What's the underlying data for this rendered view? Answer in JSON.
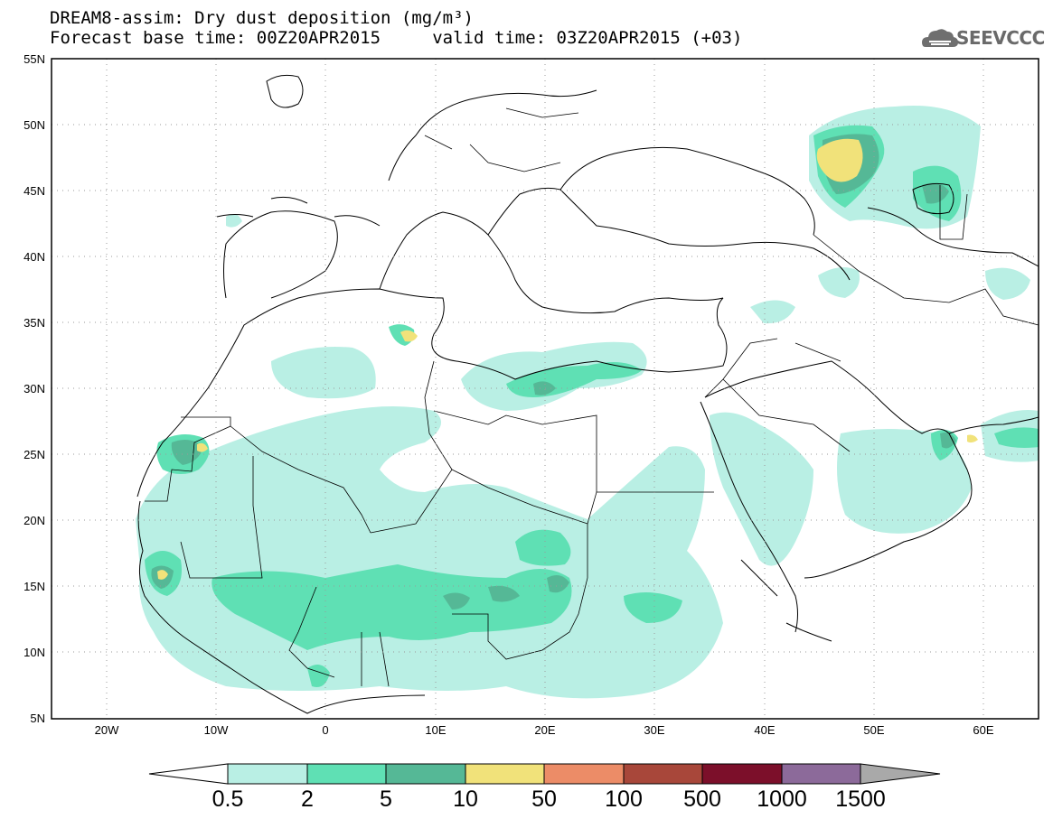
{
  "header": {
    "title_line1": "DREAM8-assim: Dry dust deposition (mg/m³)",
    "title_line2": "Forecast base time: 00Z20APR2015     valid time: 03Z20APR2015 (+03)",
    "logo_text": "SEEVCCC"
  },
  "map": {
    "projection": "lat-lon",
    "lon_range": [
      -25,
      65
    ],
    "lat_range": [
      5,
      55
    ],
    "lat_labels": [
      "55N",
      "50N",
      "45N",
      "40N",
      "35N",
      "30N",
      "25N",
      "20N",
      "15N",
      "10N",
      "5N"
    ],
    "lon_labels": [
      "20W",
      "10W",
      "0",
      "10E",
      "20E",
      "30E",
      "40E",
      "50E",
      "60E"
    ],
    "grid": "dotted",
    "coastline_color": "#000000"
  },
  "colorbar": {
    "labels": [
      "0.5",
      "2",
      "5",
      "10",
      "50",
      "100",
      "500",
      "1000",
      "1500"
    ],
    "colors": [
      "#b9efe4",
      "#5fe0b4",
      "#55b896",
      "#f1e27a",
      "#ec8c67",
      "#a8473a",
      "#7c0f2a",
      "#8c6a9a",
      "#a9a9a9"
    ],
    "under_color": "#ffffff"
  },
  "fills": {
    "level1": "#b9efe4",
    "level2": "#5fe0b4",
    "level3": "#55b896",
    "level4": "#f1e27a"
  }
}
